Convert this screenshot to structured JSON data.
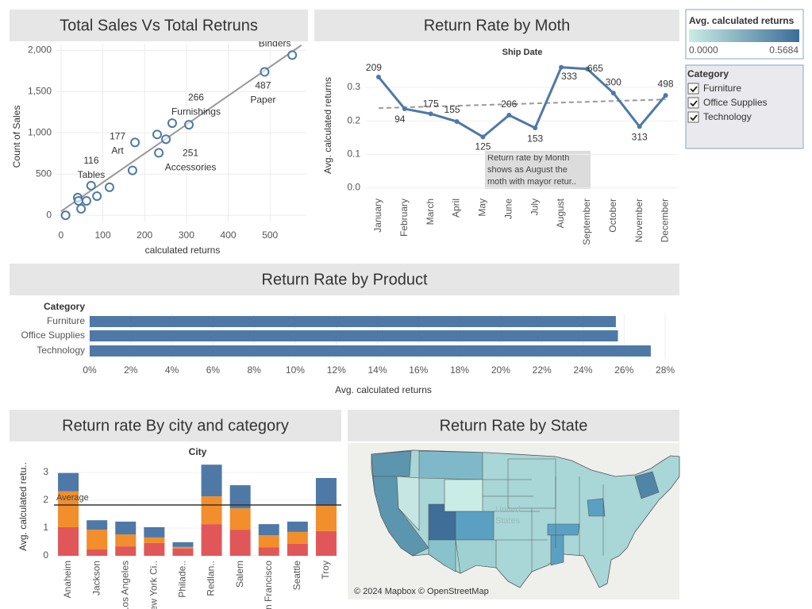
{
  "chart_data": [
    {
      "type": "scatter",
      "title": "Total Sales Vs Total Retruns",
      "x_label": "calculated returns",
      "y_label": "Count of Sales",
      "x": [
        11,
        40,
        42,
        48,
        61,
        72,
        86,
        116,
        171,
        177,
        230,
        234,
        251,
        266,
        306,
        487,
        553
      ],
      "y": [
        0,
        214,
        175,
        78,
        175,
        359,
        233,
        340,
        544,
        883,
        980,
        757,
        922,
        1117,
        1097,
        1738,
        1942
      ],
      "labels": [
        null,
        null,
        null,
        null,
        null,
        null,
        null,
        "Tables",
        null,
        "Art",
        null,
        null,
        "Accessories",
        "Furnishings",
        null,
        "Paper",
        "Binders"
      ],
      "color": "#4e79a7",
      "trendline": {
        "x": [
          0,
          575
        ],
        "y": [
          48,
          2062
        ],
        "color": "#999999"
      },
      "xlim": [
        -13,
        585
      ],
      "xticks": [
        0,
        100,
        200,
        300,
        400,
        500
      ],
      "ylim": [
        -85,
        2080
      ],
      "yticks": [
        0,
        500,
        {
          "value": 1000,
          "label": "1,000"
        },
        {
          "value": 1500,
          "label": "1,500"
        },
        {
          "value": 2000,
          "label": "2,000"
        }
      ],
      "grid": true
    },
    {
      "type": "line",
      "title": "Return Rate by Moth",
      "x_title": "Ship Date",
      "y_label": "Avg. calculated returns",
      "categories": [
        "January",
        "February",
        "March",
        "April",
        "May",
        "June",
        "July",
        "August",
        "September",
        "October",
        "November",
        "December"
      ],
      "values": [
        0.331,
        0.236,
        0.221,
        0.198,
        0.152,
        0.217,
        0.179,
        0.36,
        0.355,
        0.283,
        0.183,
        0.276
      ],
      "point_labels": [
        209,
        94,
        175,
        155,
        125,
        206,
        153,
        333,
        665,
        300,
        313,
        498
      ],
      "annotation": [
        "Return rate by Month",
        "shows as August the",
        "moth with mayor retur.."
      ],
      "trendline": [
        0.238,
        0.264
      ],
      "trendline_color": "#999999",
      "color": "#4e79a7",
      "ylim": [
        -0.02,
        0.376
      ],
      "yticks": [
        {
          "value": 0,
          "label": "0.0"
        },
        0.1,
        0.2,
        0.3
      ],
      "grid": true
    },
    {
      "type": "hbar",
      "title": "Return Rate by Product",
      "y_header": "Category",
      "x_label": "Avg. calculated returns",
      "categories": [
        "Furniture",
        "Office Supplies",
        "Technology"
      ],
      "values": [
        25.6,
        25.7,
        27.3
      ],
      "color": "#4e79a7",
      "xlim": [
        0,
        28.5
      ],
      "xticks": [
        {
          "value": 0,
          "label": "0%"
        },
        {
          "value": 2,
          "label": "2%"
        },
        {
          "value": 4,
          "label": "4%"
        },
        {
          "value": 6,
          "label": "6%"
        },
        {
          "value": 8,
          "label": "8%"
        },
        {
          "value": 10,
          "label": "10%"
        },
        {
          "value": 12,
          "label": "12%"
        },
        {
          "value": 14,
          "label": "14%"
        },
        {
          "value": 16,
          "label": "16%"
        },
        {
          "value": 18,
          "label": "18%"
        },
        {
          "value": 20,
          "label": "20%"
        },
        {
          "value": 22,
          "label": "22%"
        },
        {
          "value": 24,
          "label": "24%"
        },
        {
          "value": 26,
          "label": "26%"
        },
        {
          "value": 28,
          "label": "28%"
        }
      ],
      "grid": true
    },
    {
      "type": "stacked_bar",
      "title": "Return rate By city and category",
      "x_title": "City",
      "y_label": "Avg. calculated retu..",
      "categories": [
        "Anaheim",
        "Jackson",
        "Los Angeles",
        "New York Ci..",
        "Philade..",
        "Redlan..",
        "Salem",
        "San Francisco",
        "Seattle",
        "Troy"
      ],
      "series": [
        {
          "color": "#e15759",
          "values": [
            1.03,
            0.23,
            0.34,
            0.46,
            0.26,
            1.14,
            0.94,
            0.31,
            0.43,
            0.89
          ]
        },
        {
          "color": "#f28e2b",
          "values": [
            1.29,
            0.71,
            0.43,
            0.2,
            0.06,
            1.0,
            0.77,
            0.43,
            0.43,
            0.91
          ]
        },
        {
          "color": "#4e79a7",
          "values": [
            0.66,
            0.34,
            0.46,
            0.37,
            0.17,
            1.14,
            0.83,
            0.4,
            0.37,
            1.0
          ]
        }
      ],
      "reference_line": {
        "label": "Average",
        "value": 1.83
      },
      "ylim": [
        0,
        3.3
      ],
      "yticks": [
        0,
        1,
        2,
        3
      ],
      "grid": true
    },
    {
      "type": "map",
      "title": "Return Rate by State",
      "attribution": "© 2024 Mapbox © OpenStreetMap",
      "watermark": [
        "United",
        "States"
      ]
    }
  ],
  "color_legend": {
    "title": "Avg. calculated returns",
    "min": {
      "value": 0,
      "label": "0.0000"
    },
    "max": 0.5684,
    "colors": [
      "#c9ece5",
      "#3b6d98"
    ]
  },
  "category_filter": {
    "title": "Category",
    "items": [
      "Furniture",
      "Office Supplies",
      "Technology"
    ]
  }
}
